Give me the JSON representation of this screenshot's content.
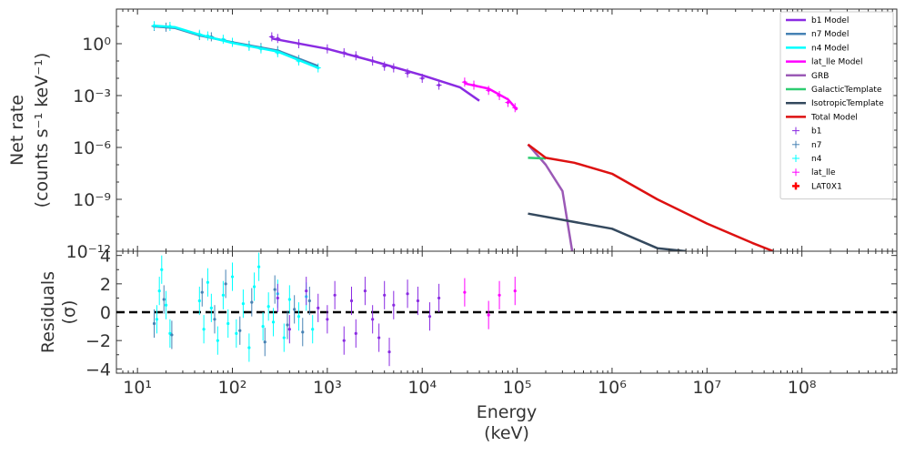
{
  "chart_data": {
    "type": "line",
    "x_scale": "log",
    "xlim": [
      6,
      1000000000.0
    ],
    "xlabel": [
      "Energy",
      "(keV)"
    ],
    "x_ticks": [
      {
        "value": 10,
        "label": "10¹"
      },
      {
        "value": 100,
        "label": "10²"
      },
      {
        "value": 1000,
        "label": "10³"
      },
      {
        "value": 10000,
        "label": "10⁴"
      },
      {
        "value": 100000,
        "label": "10⁵"
      },
      {
        "value": 1000000,
        "label": "10⁶"
      },
      {
        "value": 10000000,
        "label": "10⁷"
      },
      {
        "value": 100000000,
        "label": "10⁸"
      }
    ],
    "top_panel": {
      "y_scale": "log",
      "ylim": [
        1e-12,
        100.0
      ],
      "ylabel": [
        "Net rate",
        "(counts s⁻¹ keV⁻¹)"
      ],
      "y_ticks": [
        {
          "value": 1,
          "label": "10⁰"
        },
        {
          "value": 0.001,
          "label": "10⁻³"
        },
        {
          "value": 1e-06,
          "label": "10⁻⁶"
        },
        {
          "value": 1e-09,
          "label": "10⁻⁹"
        },
        {
          "value": 1e-12,
          "label": "10⁻¹²"
        }
      ],
      "models": [
        {
          "name": "b1 Model",
          "color": "#8a2be2",
          "points": [
            [
              260,
              2.0
            ],
            [
              1000,
              0.5
            ],
            [
              3000,
              0.1
            ],
            [
              10000,
              0.015
            ],
            [
              25000,
              0.003
            ],
            [
              40000,
              0.0005
            ]
          ]
        },
        {
          "name": "n7 Model",
          "color": "#4682b4",
          "points": [
            [
              15,
              10
            ],
            [
              25,
              8
            ],
            [
              45,
              3
            ],
            [
              100,
              1.2
            ],
            [
              300,
              0.4
            ],
            [
              800,
              0.05
            ]
          ]
        },
        {
          "name": "n4 Model",
          "color": "#00ffff",
          "points": [
            [
              15,
              11
            ],
            [
              25,
              9
            ],
            [
              45,
              3.3
            ],
            [
              100,
              1.1
            ],
            [
              300,
              0.35
            ],
            [
              800,
              0.04
            ]
          ]
        },
        {
          "name": "lat_lle Model",
          "color": "#ff00ff",
          "points": [
            [
              28000,
              0.005
            ],
            [
              50000,
              0.0025
            ],
            [
              80000,
              0.0006
            ],
            [
              100000,
              0.00015
            ]
          ]
        },
        {
          "name": "GRB",
          "color": "#9b59b6",
          "points": [
            [
              130000,
              1.5e-06
            ],
            [
              200000,
              1e-07
            ],
            [
              300000,
              3e-09
            ],
            [
              380000,
              1e-12
            ]
          ]
        },
        {
          "name": "GalacticTemplate",
          "color": "#2ecc71",
          "points": [
            [
              130000,
              2.5e-07
            ],
            [
              200000,
              2.3e-07
            ]
          ]
        },
        {
          "name": "IsotropicTemplate",
          "color": "#34495e",
          "points": [
            [
              130000,
              1.5e-10
            ],
            [
              1000000,
              2e-11
            ],
            [
              3000000,
              1.5e-12
            ],
            [
              6000000,
              1e-12
            ]
          ]
        },
        {
          "name": "Total Model",
          "color": "#dd1111",
          "points": [
            [
              130000,
              1.5e-06
            ],
            [
              200000,
              2.5e-07
            ],
            [
              400000,
              1.3e-07
            ],
            [
              1000000,
              3e-08
            ],
            [
              3000000,
              1e-09
            ],
            [
              10000000,
              4e-11
            ],
            [
              30000000,
              3e-12
            ],
            [
              50000000,
              1e-12
            ]
          ]
        }
      ],
      "data_series": [
        {
          "name": "b1",
          "color": "#8a2be2",
          "points": [
            [
              260,
              2.5
            ],
            [
              300,
              2.0
            ],
            [
              500,
              1.0
            ],
            [
              1000,
              0.5
            ],
            [
              1500,
              0.3
            ],
            [
              2000,
              0.2
            ],
            [
              3000,
              0.1
            ],
            [
              4000,
              0.05
            ],
            [
              5000,
              0.04
            ],
            [
              7000,
              0.02
            ],
            [
              10000,
              0.01
            ],
            [
              15000,
              0.004
            ]
          ]
        },
        {
          "name": "n7",
          "color": "#4682b4",
          "points": [
            [
              15,
              10
            ],
            [
              20,
              9
            ],
            [
              45,
              3
            ],
            [
              60,
              2.5
            ],
            [
              100,
              1.2
            ],
            [
              150,
              0.8
            ],
            [
              200,
              0.6
            ],
            [
              300,
              0.4
            ],
            [
              500,
              0.12
            ]
          ]
        },
        {
          "name": "n4",
          "color": "#00ffff",
          "points": [
            [
              15,
              11
            ],
            [
              22,
              10
            ],
            [
              45,
              3.5
            ],
            [
              55,
              2.8
            ],
            [
              80,
              1.8
            ],
            [
              100,
              1.2
            ],
            [
              150,
              0.7
            ],
            [
              200,
              0.5
            ],
            [
              300,
              0.3
            ],
            [
              500,
              0.1
            ],
            [
              800,
              0.04
            ]
          ]
        },
        {
          "name": "lat_lle",
          "color": "#ff00ff",
          "points": [
            [
              28000,
              0.006
            ],
            [
              35000,
              0.004
            ],
            [
              50000,
              0.002
            ],
            [
              65000,
              0.001
            ],
            [
              80000,
              0.0004
            ],
            [
              95000,
              0.0002
            ]
          ]
        },
        {
          "name": "LAT0X1",
          "color": "#ff0000",
          "points": []
        }
      ]
    },
    "bottom_panel": {
      "ylim": [
        -4.3,
        4.3
      ],
      "ylabel": [
        "Residuals",
        "(σ)"
      ],
      "y_ticks": [
        {
          "value": 4,
          "label": "4"
        },
        {
          "value": 2,
          "label": "2"
        },
        {
          "value": 0,
          "label": "0"
        },
        {
          "value": -2,
          "label": "−2"
        },
        {
          "value": -4,
          "label": "−4"
        }
      ],
      "reference_line": 0,
      "residuals": [
        {
          "name": "n4",
          "color": "#00ffff",
          "points": [
            [
              16,
              -0.5
            ],
            [
              17,
              1.5
            ],
            [
              18,
              3.0
            ],
            [
              20,
              0.5
            ],
            [
              22,
              -1.5
            ],
            [
              45,
              0.8
            ],
            [
              50,
              -1.2
            ],
            [
              55,
              2.1
            ],
            [
              60,
              0.3
            ],
            [
              70,
              -2.0
            ],
            [
              80,
              1.2
            ],
            [
              90,
              -0.8
            ],
            [
              100,
              2.5
            ],
            [
              110,
              -1.5
            ],
            [
              130,
              0.6
            ],
            [
              150,
              -2.5
            ],
            [
              170,
              1.8
            ],
            [
              190,
              3.2
            ],
            [
              210,
              -1.0
            ],
            [
              240,
              0.4
            ],
            [
              270,
              -0.7
            ],
            [
              300,
              1.3
            ],
            [
              350,
              -1.8
            ],
            [
              400,
              0.9
            ],
            [
              500,
              -0.3
            ],
            [
              600,
              1.1
            ],
            [
              700,
              -1.2
            ]
          ]
        },
        {
          "name": "n7",
          "color": "#4682b4",
          "points": [
            [
              15,
              -0.8
            ],
            [
              19,
              0.9
            ],
            [
              23,
              -1.6
            ],
            [
              48,
              1.4
            ],
            [
              65,
              -0.5
            ],
            [
              85,
              2.0
            ],
            [
              120,
              -1.3
            ],
            [
              160,
              0.7
            ],
            [
              220,
              -2.1
            ],
            [
              280,
              1.6
            ],
            [
              380,
              -0.9
            ],
            [
              450,
              0.2
            ],
            [
              550,
              -1.4
            ],
            [
              650,
              0.8
            ]
          ]
        },
        {
          "name": "b1",
          "color": "#8a2be2",
          "points": [
            [
              300,
              1.0
            ],
            [
              400,
              -1.2
            ],
            [
              600,
              1.5
            ],
            [
              800,
              0.3
            ],
            [
              1000,
              -0.5
            ],
            [
              1200,
              1.2
            ],
            [
              1500,
              -2.0
            ],
            [
              1800,
              0.8
            ],
            [
              2000,
              -1.5
            ],
            [
              2500,
              1.5
            ],
            [
              3000,
              -0.5
            ],
            [
              3500,
              -1.8
            ],
            [
              4000,
              1.2
            ],
            [
              4500,
              -2.8
            ],
            [
              5000,
              0.5
            ],
            [
              7000,
              1.3
            ],
            [
              9000,
              0.8
            ],
            [
              12000,
              -0.3
            ],
            [
              15000,
              1.0
            ]
          ]
        },
        {
          "name": "lat_lle",
          "color": "#ff00ff",
          "points": [
            [
              28000,
              1.4
            ],
            [
              50000,
              -0.2
            ],
            [
              65000,
              1.2
            ],
            [
              95000,
              1.5
            ]
          ]
        }
      ]
    },
    "legend": {
      "placement": "top-right",
      "entries": [
        {
          "label": "b1 Model",
          "color": "#8a2be2",
          "kind": "line"
        },
        {
          "label": "n7 Model",
          "color": "#4682b4",
          "kind": "line"
        },
        {
          "label": "n4 Model",
          "color": "#00ffff",
          "kind": "line"
        },
        {
          "label": "lat_lle Model",
          "color": "#ff00ff",
          "kind": "line"
        },
        {
          "label": "GRB",
          "color": "#9b59b6",
          "kind": "line"
        },
        {
          "label": "GalacticTemplate",
          "color": "#2ecc71",
          "kind": "line"
        },
        {
          "label": "IsotropicTemplate",
          "color": "#34495e",
          "kind": "line"
        },
        {
          "label": "Total Model",
          "color": "#dd1111",
          "kind": "line"
        },
        {
          "label": "b1",
          "color": "#8a2be2",
          "kind": "marker"
        },
        {
          "label": "n7",
          "color": "#4682b4",
          "kind": "marker"
        },
        {
          "label": "n4",
          "color": "#00ffff",
          "kind": "marker"
        },
        {
          "label": "lat_lle",
          "color": "#ff00ff",
          "kind": "marker"
        },
        {
          "label": "LAT0X1",
          "color": "#ff0000",
          "kind": "marker"
        }
      ]
    }
  }
}
